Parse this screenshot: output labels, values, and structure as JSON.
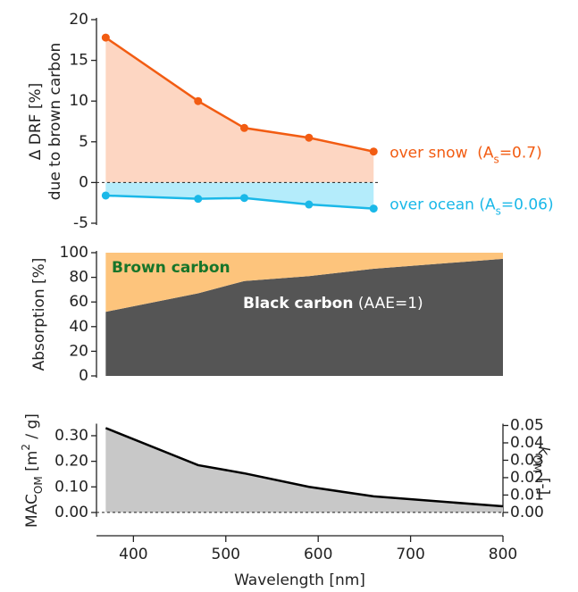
{
  "chart_data": [
    {
      "type": "line",
      "ylabel": [
        "Δ DRF [%]",
        "due to brown carbon"
      ],
      "x": [
        370,
        470,
        520,
        590,
        660
      ],
      "xlim": [
        360,
        800
      ],
      "ylim": [
        -5,
        20
      ],
      "yticks": [
        -5,
        0,
        5,
        10,
        15,
        20
      ],
      "zero_line": true,
      "series": [
        {
          "name": [
            "over snow  (A",
            "s",
            "=0.7)"
          ],
          "color": "#f25c12",
          "fill": "#fdd6c2",
          "values": [
            17.8,
            10,
            6.7,
            5.5,
            3.8
          ]
        },
        {
          "name": [
            "over ocean (A",
            "s",
            "=0.06)"
          ],
          "color": "#1ab8e8",
          "fill": "#b4ecfb",
          "values": [
            -1.6,
            -2.0,
            -1.9,
            -2.7,
            -3.2
          ]
        }
      ]
    },
    {
      "type": "stacked_area",
      "ylabel": [
        "Absorption [%]"
      ],
      "x": [
        370,
        470,
        520,
        590,
        660,
        800
      ],
      "xlim": [
        360,
        800
      ],
      "ylim": [
        0,
        100
      ],
      "yticks": [
        0,
        20,
        40,
        60,
        80,
        100
      ],
      "series": [
        {
          "name": [
            "Black carbon",
            " (AAE=1)"
          ],
          "color": "#555555",
          "label_color": "#ffffff",
          "values": [
            52,
            67,
            77,
            81,
            87,
            95
          ]
        },
        {
          "name": [
            "Brown carbon"
          ],
          "color": "#fdc47c",
          "label_color": "#17752a",
          "values": [
            48,
            33,
            23,
            19,
            13,
            5
          ]
        }
      ]
    },
    {
      "type": "area",
      "ylabel": [
        "MAC",
        "OM",
        " [m",
        "2",
        " / g]"
      ],
      "y2label": [
        "k",
        "OM",
        " [-]"
      ],
      "xlabel": "Wavelength [nm]",
      "x": [
        370,
        470,
        520,
        590,
        660,
        800
      ],
      "xlim": [
        360,
        800
      ],
      "xticks": [
        400,
        500,
        600,
        700,
        800
      ],
      "ylim": [
        -0.01,
        0.34
      ],
      "yticks": [
        {
          "value": 0,
          "label": "0.00"
        },
        {
          "value": 0.1,
          "label": "0.10"
        },
        {
          "value": 0.2,
          "label": "0.20"
        },
        {
          "value": 0.3,
          "label": "0.30"
        }
      ],
      "y2lim": [
        -0.0015,
        0.05
      ],
      "y2ticks": [
        {
          "value": 0,
          "label": "0.00"
        },
        {
          "value": 0.01,
          "label": "0.01"
        },
        {
          "value": 0.02,
          "label": "0.02"
        },
        {
          "value": 0.03,
          "label": "0.03"
        },
        {
          "value": 0.04,
          "label": "0.04"
        },
        {
          "value": 0.05,
          "label": "0.05"
        }
      ],
      "zero_line": true,
      "color": "#000000",
      "fill": "#c8c8c8",
      "values": [
        0.33,
        0.185,
        0.153,
        0.1,
        0.063,
        0.024
      ]
    }
  ]
}
